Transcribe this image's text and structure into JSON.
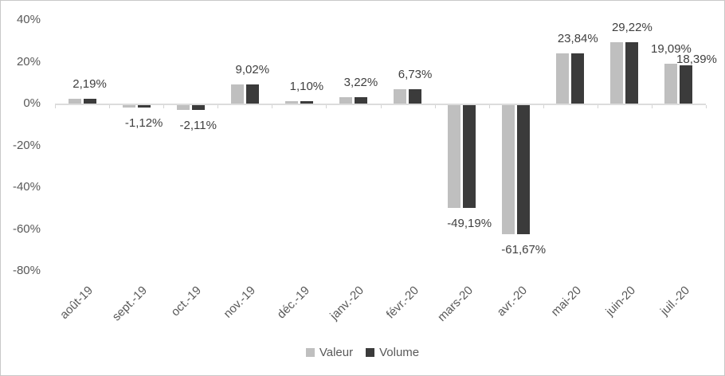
{
  "chart_data": {
    "type": "bar",
    "title": "",
    "xlabel": "",
    "ylabel": "",
    "categories": [
      "août-19",
      "sept.-19",
      "oct.-19",
      "nov.-19",
      "déc.-19",
      "janv.-20",
      "févr.-20",
      "mars-20",
      "avr.-20",
      "mai-20",
      "juin-20",
      "juil.-20"
    ],
    "series": [
      {
        "name": "Valeur",
        "color": "#bfbfbf",
        "values": [
          2.19,
          -1.12,
          -2.11,
          9.02,
          1.1,
          3.22,
          6.73,
          -49.19,
          -61.67,
          23.84,
          29.22,
          19.09
        ]
      },
      {
        "name": "Volume",
        "color": "#3b3b3b",
        "values": [
          2.19,
          -1.12,
          -2.11,
          9.02,
          1.1,
          3.22,
          6.73,
          -49.19,
          -61.67,
          23.84,
          29.22,
          18.39
        ]
      }
    ],
    "data_labels": [
      [
        "2,19%"
      ],
      [
        "-1,12%"
      ],
      [
        "-2,11%"
      ],
      [
        "9,02%"
      ],
      [
        "1,10%"
      ],
      [
        "3,22%"
      ],
      [
        "6,73%"
      ],
      [
        "-49,19%"
      ],
      [
        "-61,67%"
      ],
      [
        "23,84%"
      ],
      [
        "29,22%"
      ],
      [
        "19,09%",
        "18,39%"
      ]
    ],
    "y_ticks": [
      "40%",
      "20%",
      "0%",
      "-20%",
      "-40%",
      "-60%",
      "-80%"
    ],
    "y_tick_values": [
      40,
      20,
      0,
      -20,
      -40,
      -60,
      -80
    ],
    "ylim": [
      -80,
      40
    ],
    "grid": false,
    "legend_position": "bottom",
    "axis_color": "#dcdcdc",
    "tick_color": "#d4d4d4",
    "text_color": "#595959",
    "data_label_color": "#404040"
  }
}
